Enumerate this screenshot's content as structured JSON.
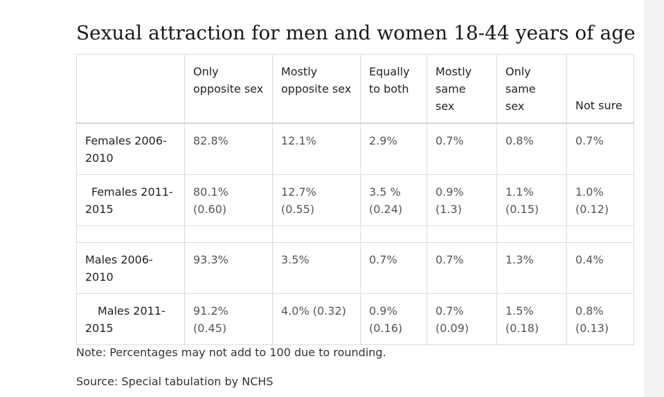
{
  "title": "Sexual attraction for men and women 18-44 years of age",
  "table": {
    "headers": [
      {
        "line1": "",
        "line2": ""
      },
      {
        "line1": "Only",
        "line2": "opposite sex"
      },
      {
        "line1": "Mostly",
        "line2": "opposite sex"
      },
      {
        "line1": "Equally",
        "line2": "to both"
      },
      {
        "line1": "Mostly",
        "line2": "same sex"
      },
      {
        "line1": "Only",
        "line2": "same sex"
      },
      {
        "line1": "Not sure",
        "line2": ""
      }
    ],
    "rows": [
      {
        "label_line1": "Females 2006-",
        "label_line2": "2010",
        "cells": [
          {
            "line1": "82.8%",
            "line2": ""
          },
          {
            "line1": "12.1%",
            "line2": ""
          },
          {
            "line1": "2.9%",
            "line2": ""
          },
          {
            "line1": "0.7%",
            "line2": ""
          },
          {
            "line1": "0.8%",
            "line2": ""
          },
          {
            "line1": "0.7%",
            "line2": ""
          }
        ]
      },
      {
        "label_line1": "Females 2011-",
        "label_line2": "2015",
        "cells": [
          {
            "line1": "80.1% (0.60)",
            "line2": ""
          },
          {
            "line1": "12.7% (0.55)",
            "line2": ""
          },
          {
            "line1": "3.5 %",
            "line2": "(0.24)"
          },
          {
            "line1": "0.9%",
            "line2": "(1.3)"
          },
          {
            "line1": "1.1%",
            "line2": "(0.15)"
          },
          {
            "line1": "1.0%",
            "line2": "(0.12)"
          }
        ]
      },
      {
        "label_line1": "Males 2006-",
        "label_line2": "2010",
        "cells": [
          {
            "line1": "93.3%",
            "line2": ""
          },
          {
            "line1": "3.5%",
            "line2": ""
          },
          {
            "line1": "0.7%",
            "line2": ""
          },
          {
            "line1": "0.7%",
            "line2": ""
          },
          {
            "line1": "1.3%",
            "line2": ""
          },
          {
            "line1": "0.4%",
            "line2": ""
          }
        ]
      },
      {
        "label_line1": "Males 2011-",
        "label_line2": "2015",
        "cells": [
          {
            "line1": "91.2% (0.45)",
            "line2": ""
          },
          {
            "line1": "4.0% (0.32)",
            "line2": ""
          },
          {
            "line1": "0.9%",
            "line2": "(0.16)"
          },
          {
            "line1": "0.7%",
            "line2": "(0.09)"
          },
          {
            "line1": "1.5%",
            "line2": "(0.18)"
          },
          {
            "line1": "0.8%",
            "line2": "(0.13)"
          }
        ]
      }
    ]
  },
  "note": "Note: Percentages may not add to 100 due to rounding.",
  "source": "Source: Special tabulation by NCHS"
}
